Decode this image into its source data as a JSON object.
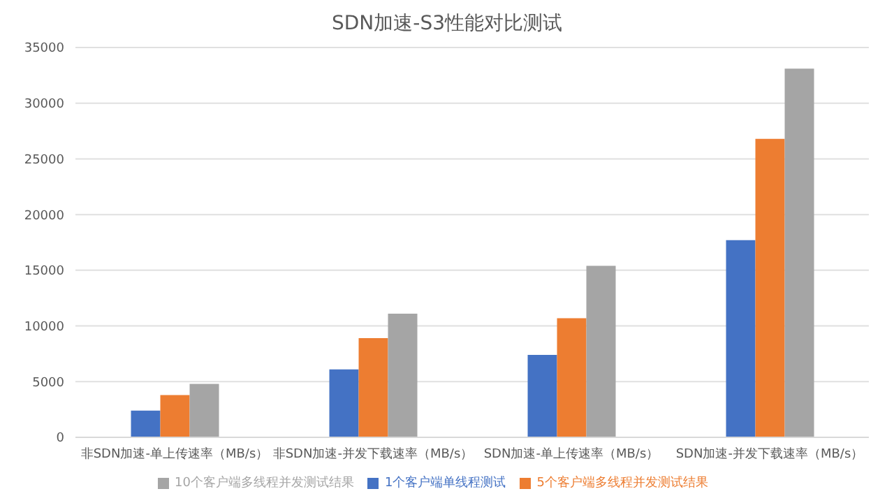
{
  "chart_data": {
    "type": "bar",
    "title": "SDN加速-S3性能对比测试",
    "categories": [
      "非SDN加速-单上传速率（MB/s）",
      "非SDN加速-并发下载速率（MB/s）",
      "SDN加速-单上传速率（MB/s）",
      "SDN加速-并发下载速率（MB/s）"
    ],
    "series": [
      {
        "name": "1个客户端单线程测试",
        "color": "#4472c4",
        "values": [
          2400,
          6100,
          7400,
          17700
        ]
      },
      {
        "name": "5个客户端多线程并发测试结果",
        "color": "#ed7d31",
        "values": [
          3800,
          8900,
          10700,
          26800
        ]
      },
      {
        "name": "10个客户端多线程并发测试结果",
        "color": "#a5a5a5",
        "values": [
          4800,
          11100,
          15400,
          33100
        ]
      }
    ],
    "ylim": [
      0,
      35000
    ],
    "yticks": [
      0,
      5000,
      10000,
      15000,
      20000,
      25000,
      30000,
      35000
    ],
    "grid": "y",
    "legend": "bottom"
  }
}
